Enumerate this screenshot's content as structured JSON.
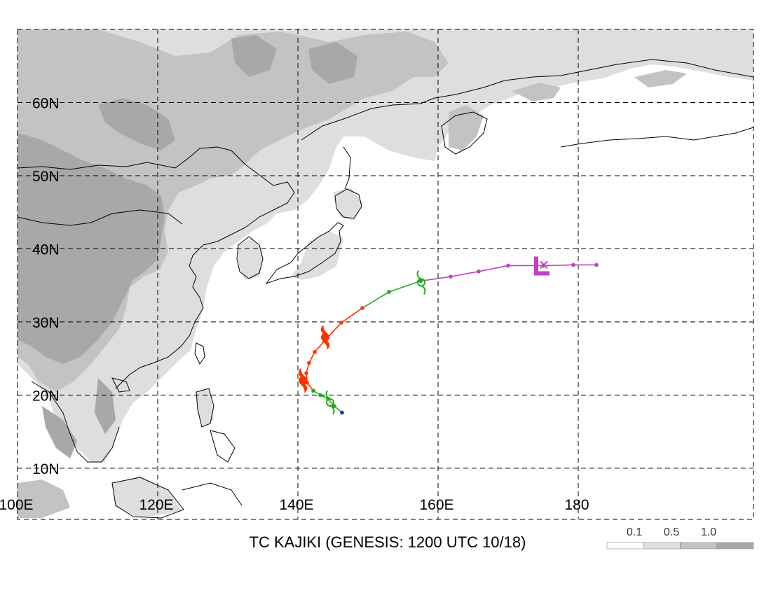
{
  "map": {
    "title": "TC KAJIKI (GENESIS: 1200 UTC 10/18)",
    "lat_labels": [
      {
        "text": "60N",
        "lat": 60
      },
      {
        "text": "50N",
        "lat": 50
      },
      {
        "text": "40N",
        "lat": 40
      },
      {
        "text": "30N",
        "lat": 30
      },
      {
        "text": "20N",
        "lat": 20
      },
      {
        "text": "10N",
        "lat": 10
      }
    ],
    "lon_labels": [
      {
        "text": "100E",
        "lon": 100
      },
      {
        "text": "120E",
        "lon": 120
      },
      {
        "text": "140E",
        "lon": 140
      },
      {
        "text": "160E",
        "lon": 160
      },
      {
        "text": "180",
        "lon": 180
      }
    ],
    "extent": {
      "lon_min": 100,
      "lon_max": 205,
      "lat_min": 3,
      "lat_max": 70
    },
    "legend": {
      "labels": [
        "0.1",
        "0.5",
        "1.0"
      ],
      "colors": [
        "#ffffff",
        "#dedede",
        "#c3c3c3",
        "#a8a8a8"
      ]
    },
    "colors": {
      "tropical_depression": "#1a2fd6",
      "tropical_storm": "#19b019",
      "typhoon": "#ff3300",
      "extratropical": "#c040c0"
    },
    "track": [
      {
        "lon": 146.3,
        "lat": 17.6,
        "stage": "tropical_depression"
      },
      {
        "lon": 145.2,
        "lat": 18.5,
        "stage": "tropical_storm"
      },
      {
        "lon": 144.3,
        "lat": 19.5,
        "stage": "tropical_storm"
      },
      {
        "lon": 143.2,
        "lat": 20.0,
        "stage": "tropical_storm"
      },
      {
        "lon": 142.2,
        "lat": 20.6,
        "stage": "tropical_storm"
      },
      {
        "lon": 141.3,
        "lat": 21.7,
        "stage": "typhoon"
      },
      {
        "lon": 141.2,
        "lat": 23.0,
        "stage": "typhoon"
      },
      {
        "lon": 141.6,
        "lat": 24.4,
        "stage": "typhoon"
      },
      {
        "lon": 142.4,
        "lat": 25.9,
        "stage": "typhoon"
      },
      {
        "lon": 143.8,
        "lat": 27.4,
        "stage": "typhoon"
      },
      {
        "lon": 146.2,
        "lat": 29.9,
        "stage": "typhoon"
      },
      {
        "lon": 149.2,
        "lat": 31.9,
        "stage": "typhoon"
      },
      {
        "lon": 153.0,
        "lat": 34.1,
        "stage": "tropical_storm"
      },
      {
        "lon": 157.5,
        "lat": 35.6,
        "stage": "tropical_storm"
      },
      {
        "lon": 161.8,
        "lat": 36.2,
        "stage": "extratropical"
      },
      {
        "lon": 165.8,
        "lat": 36.9,
        "stage": "extratropical"
      },
      {
        "lon": 170.0,
        "lat": 37.7,
        "stage": "extratropical"
      },
      {
        "lon": 175.0,
        "lat": 37.7,
        "stage": "extratropical"
      },
      {
        "lon": 179.3,
        "lat": 37.8,
        "stage": "extratropical"
      },
      {
        "lon": 182.6,
        "lat": 37.8,
        "stage": "extratropical"
      }
    ],
    "symbols": [
      {
        "type": "tropical-storm",
        "lon": 144.6,
        "lat": 19.0
      },
      {
        "type": "typhoon",
        "lon": 140.7,
        "lat": 22.0
      },
      {
        "type": "typhoon",
        "lon": 143.9,
        "lat": 27.9
      },
      {
        "type": "tropical-storm",
        "lon": 157.6,
        "lat": 35.4
      },
      {
        "type": "low",
        "lon": 174.3,
        "lat": 37.6
      },
      {
        "type": "dissipation",
        "lon": 175.1,
        "lat": 37.8
      }
    ]
  }
}
